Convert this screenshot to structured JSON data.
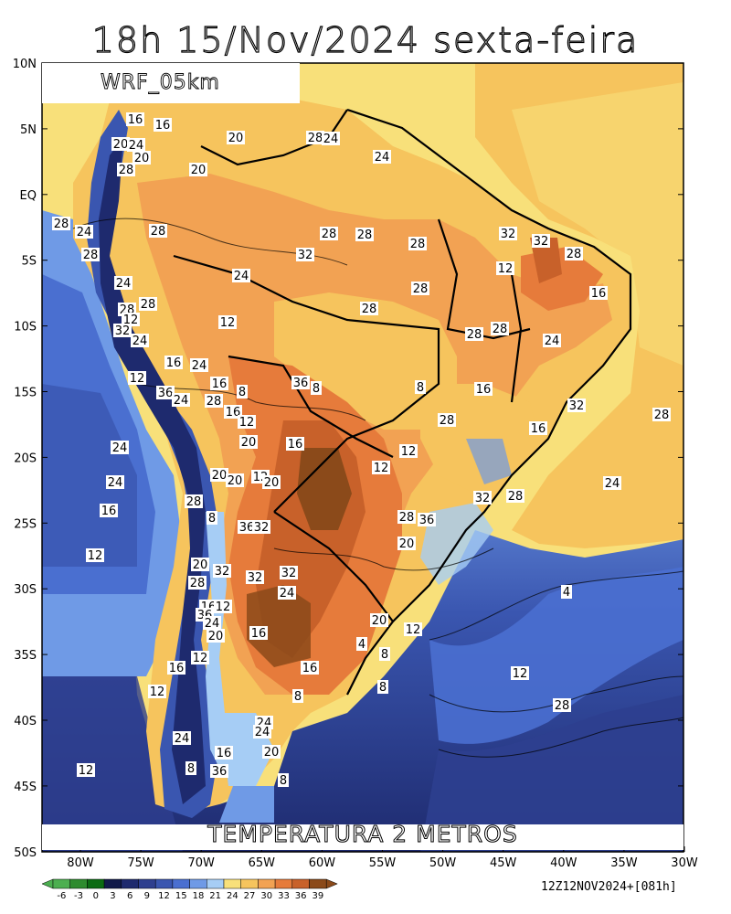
{
  "title": "18h 15/Nov/2024 sexta-feira",
  "model": "WRF_05km",
  "field": "TEMPERATURA 2 METROS",
  "run": "12Z12NOV2024+[081h]",
  "lat_ticks": [
    "10N",
    "5N",
    "EQ",
    "5S",
    "10S",
    "15S",
    "20S",
    "25S",
    "30S",
    "35S",
    "40S",
    "45S",
    "50S"
  ],
  "lon_ticks": [
    "80W",
    "75W",
    "70W",
    "65W",
    "60W",
    "55W",
    "50W",
    "45W",
    "40W",
    "35W",
    "30W"
  ],
  "colorbar": {
    "labels": [
      "-6",
      "-3",
      "0",
      "3",
      "6",
      "9",
      "12",
      "15",
      "18",
      "21",
      "24",
      "27",
      "30",
      "33",
      "36",
      "39"
    ],
    "colors": [
      "#4caf50",
      "#2e8b2e",
      "#0b6b12",
      "#111a4a",
      "#1e2a6e",
      "#2e3f8f",
      "#3a56b0",
      "#4a6fd0",
      "#6f9ae6",
      "#a6cdf5",
      "#f8e07a",
      "#f6c45d",
      "#f2a253",
      "#e67b3b",
      "#c8612a",
      "#8b4a1a"
    ]
  },
  "contour_labels": [
    "16",
    "16",
    "20",
    "24",
    "20",
    "20",
    "28",
    "24",
    "28",
    "20",
    "24",
    "28",
    "24",
    "28",
    "28",
    "28",
    "28",
    "32",
    "32",
    "32",
    "28",
    "28",
    "24",
    "24",
    "28",
    "28",
    "28",
    "28",
    "12",
    "16",
    "12",
    "12",
    "28",
    "28",
    "24",
    "32",
    "24",
    "16",
    "24",
    "12",
    "16",
    "36",
    "8",
    "8",
    "8",
    "16",
    "32",
    "28",
    "36",
    "24",
    "28",
    "16",
    "12",
    "16",
    "12",
    "28",
    "20",
    "16",
    "24",
    "20",
    "20",
    "12",
    "12",
    "20",
    "24",
    "24",
    "32",
    "28",
    "28",
    "16",
    "8",
    "36",
    "32",
    "28",
    "36",
    "20",
    "12",
    "20",
    "32",
    "32",
    "32",
    "28",
    "24",
    "4",
    "16",
    "12",
    "36",
    "24",
    "20",
    "16",
    "20",
    "12",
    "4",
    "8",
    "12",
    "16",
    "16",
    "12",
    "8",
    "12",
    "8",
    "28",
    "24",
    "24",
    "24",
    "20",
    "16",
    "12",
    "8",
    "36",
    "8"
  ]
}
